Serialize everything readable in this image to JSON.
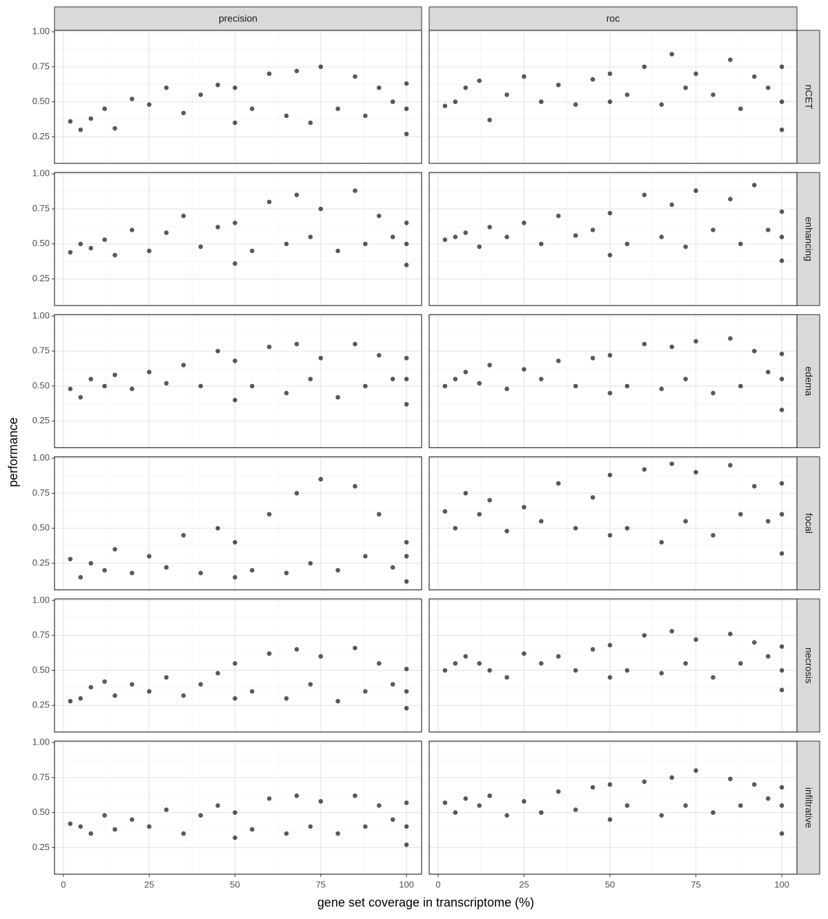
{
  "chart_data": {
    "type": "scatter",
    "x_label": "gene set coverage in transcriptome (%)",
    "y_label": "performance",
    "xlim": [
      -2.6,
      104.4
    ],
    "xticks": [
      0,
      25,
      50,
      75,
      100
    ],
    "ylim": [
      0.06,
      1.01
    ],
    "yticks": [
      {
        "value": 0.25,
        "label": "0.25"
      },
      {
        "value": 0.5,
        "label": "0.50"
      },
      {
        "value": 0.75,
        "label": "0.75"
      },
      {
        "value": 1,
        "label": "1.00"
      }
    ],
    "grid": true,
    "color": "#000000",
    "columns": [
      "precision",
      "roc"
    ],
    "rows": [
      "nCET",
      "enhancing",
      "edema",
      "focal",
      "necrosis",
      "infiltrative"
    ],
    "panels": [
      [
        {
          "x": [
            2,
            5,
            8,
            12,
            15,
            20,
            25,
            30,
            35,
            40,
            45,
            50,
            50,
            55,
            60,
            65,
            68,
            72,
            75,
            80,
            85,
            88,
            92,
            96,
            100,
            100,
            100
          ],
          "y": [
            0.36,
            0.3,
            0.38,
            0.45,
            0.31,
            0.52,
            0.48,
            0.6,
            0.42,
            0.55,
            0.62,
            0.35,
            0.6,
            0.45,
            0.7,
            0.4,
            0.72,
            0.35,
            0.75,
            0.45,
            0.68,
            0.4,
            0.6,
            0.5,
            0.27,
            0.45,
            0.63
          ]
        },
        {
          "x": [
            2,
            5,
            8,
            12,
            15,
            20,
            25,
            30,
            35,
            40,
            45,
            50,
            50,
            55,
            60,
            65,
            68,
            72,
            75,
            80,
            85,
            88,
            92,
            96,
            100,
            100,
            100
          ],
          "y": [
            0.47,
            0.5,
            0.6,
            0.65,
            0.37,
            0.55,
            0.68,
            0.5,
            0.62,
            0.48,
            0.66,
            0.5,
            0.7,
            0.55,
            0.75,
            0.48,
            0.84,
            0.6,
            0.7,
            0.55,
            0.8,
            0.45,
            0.68,
            0.6,
            0.3,
            0.5,
            0.75
          ]
        }
      ],
      [
        {
          "x": [
            2,
            5,
            8,
            12,
            15,
            20,
            25,
            30,
            35,
            40,
            45,
            50,
            50,
            55,
            60,
            65,
            68,
            72,
            75,
            80,
            85,
            88,
            92,
            96,
            100,
            100,
            100
          ],
          "y": [
            0.44,
            0.5,
            0.47,
            0.53,
            0.42,
            0.6,
            0.45,
            0.58,
            0.7,
            0.48,
            0.62,
            0.36,
            0.65,
            0.45,
            0.8,
            0.5,
            0.85,
            0.55,
            0.75,
            0.45,
            0.88,
            0.5,
            0.7,
            0.55,
            0.35,
            0.5,
            0.65
          ]
        },
        {
          "x": [
            2,
            5,
            8,
            12,
            15,
            20,
            25,
            30,
            35,
            40,
            45,
            50,
            50,
            55,
            60,
            65,
            68,
            72,
            75,
            80,
            85,
            88,
            92,
            96,
            100,
            100,
            100
          ],
          "y": [
            0.53,
            0.55,
            0.58,
            0.48,
            0.62,
            0.55,
            0.65,
            0.5,
            0.7,
            0.56,
            0.6,
            0.42,
            0.72,
            0.5,
            0.85,
            0.55,
            0.78,
            0.48,
            0.88,
            0.6,
            0.82,
            0.5,
            0.92,
            0.6,
            0.38,
            0.55,
            0.73
          ]
        }
      ],
      [
        {
          "x": [
            2,
            5,
            8,
            12,
            15,
            20,
            25,
            30,
            35,
            40,
            45,
            50,
            50,
            55,
            60,
            65,
            68,
            72,
            75,
            80,
            85,
            88,
            92,
            96,
            100,
            100,
            100
          ],
          "y": [
            0.48,
            0.42,
            0.55,
            0.5,
            0.58,
            0.48,
            0.6,
            0.52,
            0.65,
            0.5,
            0.75,
            0.4,
            0.68,
            0.5,
            0.78,
            0.45,
            0.8,
            0.55,
            0.7,
            0.42,
            0.8,
            0.5,
            0.72,
            0.55,
            0.37,
            0.55,
            0.7
          ]
        },
        {
          "x": [
            2,
            5,
            8,
            12,
            15,
            20,
            25,
            30,
            35,
            40,
            45,
            50,
            50,
            55,
            60,
            65,
            68,
            72,
            75,
            80,
            85,
            88,
            92,
            96,
            100,
            100,
            100
          ],
          "y": [
            0.5,
            0.55,
            0.6,
            0.52,
            0.65,
            0.48,
            0.62,
            0.55,
            0.68,
            0.5,
            0.7,
            0.45,
            0.72,
            0.5,
            0.8,
            0.48,
            0.78,
            0.55,
            0.82,
            0.45,
            0.84,
            0.5,
            0.75,
            0.6,
            0.33,
            0.55,
            0.73
          ]
        }
      ],
      [
        {
          "x": [
            2,
            5,
            8,
            12,
            15,
            20,
            25,
            30,
            35,
            40,
            45,
            50,
            50,
            55,
            60,
            65,
            68,
            72,
            75,
            80,
            85,
            88,
            92,
            96,
            100,
            100,
            100
          ],
          "y": [
            0.28,
            0.15,
            0.25,
            0.2,
            0.35,
            0.18,
            0.3,
            0.22,
            0.45,
            0.18,
            0.5,
            0.15,
            0.4,
            0.2,
            0.6,
            0.18,
            0.75,
            0.25,
            0.85,
            0.2,
            0.8,
            0.3,
            0.6,
            0.22,
            0.12,
            0.3,
            0.4
          ]
        },
        {
          "x": [
            2,
            5,
            8,
            12,
            15,
            20,
            25,
            30,
            35,
            40,
            45,
            50,
            50,
            55,
            60,
            65,
            68,
            72,
            75,
            80,
            85,
            88,
            92,
            96,
            100,
            100,
            100
          ],
          "y": [
            0.62,
            0.5,
            0.75,
            0.6,
            0.7,
            0.48,
            0.65,
            0.55,
            0.82,
            0.5,
            0.72,
            0.45,
            0.88,
            0.5,
            0.92,
            0.4,
            0.96,
            0.55,
            0.9,
            0.45,
            0.95,
            0.6,
            0.8,
            0.55,
            0.32,
            0.6,
            0.82
          ]
        }
      ],
      [
        {
          "x": [
            2,
            5,
            8,
            12,
            15,
            20,
            25,
            30,
            35,
            40,
            45,
            50,
            50,
            55,
            60,
            65,
            68,
            72,
            75,
            80,
            85,
            88,
            92,
            96,
            100,
            100,
            100
          ],
          "y": [
            0.28,
            0.3,
            0.38,
            0.42,
            0.32,
            0.4,
            0.35,
            0.45,
            0.32,
            0.4,
            0.48,
            0.3,
            0.55,
            0.35,
            0.62,
            0.3,
            0.65,
            0.4,
            0.6,
            0.28,
            0.66,
            0.35,
            0.55,
            0.4,
            0.23,
            0.35,
            0.51
          ]
        },
        {
          "x": [
            2,
            5,
            8,
            12,
            15,
            20,
            25,
            30,
            35,
            40,
            45,
            50,
            50,
            55,
            60,
            65,
            68,
            72,
            75,
            80,
            85,
            88,
            92,
            96,
            100,
            100,
            100
          ],
          "y": [
            0.5,
            0.55,
            0.6,
            0.55,
            0.5,
            0.45,
            0.62,
            0.55,
            0.6,
            0.5,
            0.65,
            0.45,
            0.68,
            0.5,
            0.75,
            0.48,
            0.78,
            0.55,
            0.72,
            0.45,
            0.76,
            0.55,
            0.7,
            0.6,
            0.36,
            0.5,
            0.67
          ]
        }
      ],
      [
        {
          "x": [
            2,
            5,
            8,
            12,
            15,
            20,
            25,
            30,
            35,
            40,
            45,
            50,
            50,
            55,
            60,
            65,
            68,
            72,
            75,
            80,
            85,
            88,
            92,
            96,
            100,
            100,
            100
          ],
          "y": [
            0.42,
            0.4,
            0.35,
            0.48,
            0.38,
            0.45,
            0.4,
            0.52,
            0.35,
            0.48,
            0.55,
            0.32,
            0.5,
            0.38,
            0.6,
            0.35,
            0.62,
            0.4,
            0.58,
            0.35,
            0.62,
            0.4,
            0.55,
            0.45,
            0.27,
            0.4,
            0.57
          ]
        },
        {
          "x": [
            2,
            5,
            8,
            12,
            15,
            20,
            25,
            30,
            35,
            40,
            45,
            50,
            50,
            55,
            60,
            65,
            68,
            72,
            75,
            80,
            85,
            88,
            92,
            96,
            100,
            100,
            100
          ],
          "y": [
            0.57,
            0.5,
            0.6,
            0.55,
            0.62,
            0.48,
            0.58,
            0.5,
            0.65,
            0.52,
            0.68,
            0.45,
            0.7,
            0.55,
            0.72,
            0.48,
            0.75,
            0.55,
            0.8,
            0.5,
            0.74,
            0.55,
            0.7,
            0.6,
            0.35,
            0.55,
            0.68
          ]
        }
      ]
    ]
  }
}
